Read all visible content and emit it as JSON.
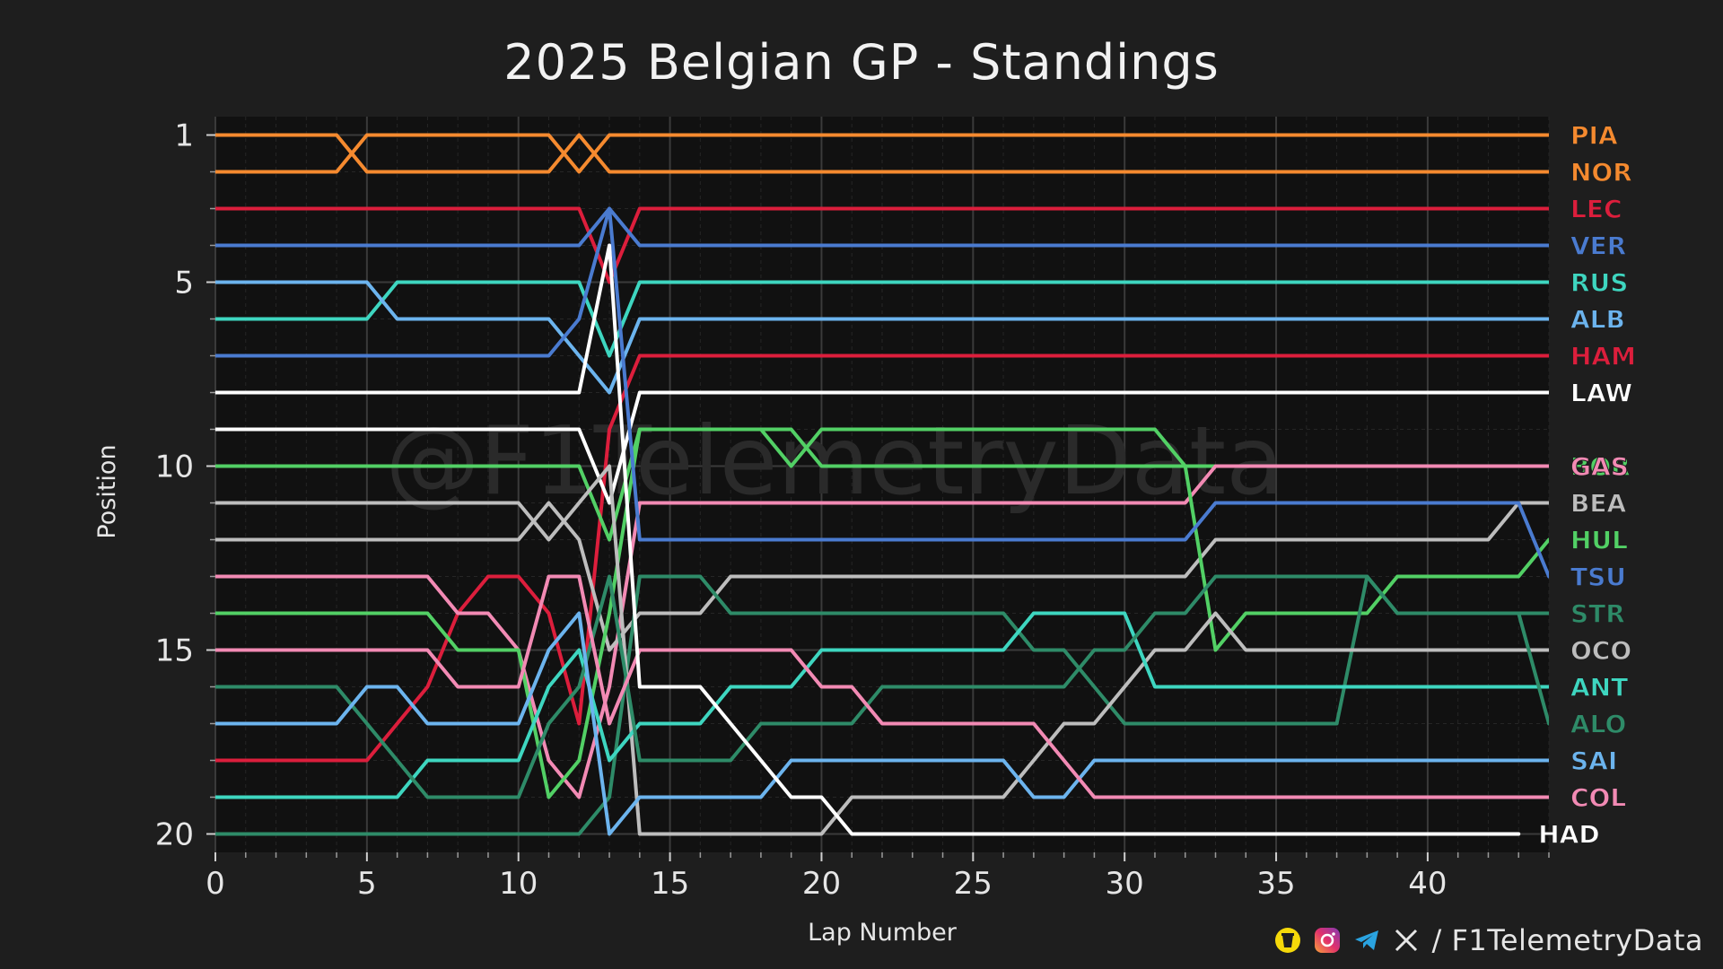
{
  "footer": {
    "handle": "/ F1TelemetryData",
    "icons": [
      "buymeacoffee-icon",
      "instagram-icon",
      "telegram-icon",
      "x-icon"
    ]
  },
  "chart_data": {
    "type": "line",
    "title": "2025 Belgian GP - Standings",
    "xlabel": "Lap Number",
    "ylabel": "Position",
    "xlim": [
      0,
      44
    ],
    "ylim": [
      20.5,
      0.5
    ],
    "xticks": [
      0,
      5,
      10,
      15,
      20,
      25,
      30,
      35,
      40
    ],
    "yticks": [
      1,
      5,
      10,
      15,
      20
    ],
    "grid": true,
    "watermark": "@F1TelemetryData",
    "legend": "driver labels at line ends (right)",
    "series": [
      {
        "name": "PIA",
        "color": "#f58a2f",
        "values": [
          2,
          2,
          2,
          2,
          2,
          1,
          1,
          1,
          1,
          1,
          1,
          1,
          2,
          1,
          1,
          1,
          1,
          1,
          1,
          1,
          1,
          1,
          1,
          1,
          1,
          1,
          1,
          1,
          1,
          1,
          1,
          1,
          1,
          1,
          1,
          1,
          1,
          1,
          1,
          1,
          1,
          1,
          1,
          1,
          1
        ]
      },
      {
        "name": "NOR",
        "color": "#f58a2f",
        "values": [
          1,
          1,
          1,
          1,
          1,
          2,
          2,
          2,
          2,
          2,
          2,
          2,
          1,
          2,
          2,
          2,
          2,
          2,
          2,
          2,
          2,
          2,
          2,
          2,
          2,
          2,
          2,
          2,
          2,
          2,
          2,
          2,
          2,
          2,
          2,
          2,
          2,
          2,
          2,
          2,
          2,
          2,
          2,
          2,
          2
        ]
      },
      {
        "name": "LEC",
        "color": "#dc1e3c",
        "values": [
          3,
          3,
          3,
          3,
          3,
          3,
          3,
          3,
          3,
          3,
          3,
          3,
          3,
          5,
          3,
          3,
          3,
          3,
          3,
          3,
          3,
          3,
          3,
          3,
          3,
          3,
          3,
          3,
          3,
          3,
          3,
          3,
          3,
          3,
          3,
          3,
          3,
          3,
          3,
          3,
          3,
          3,
          3,
          3,
          3
        ]
      },
      {
        "name": "VER",
        "color": "#4a7bd0",
        "values": [
          4,
          4,
          4,
          4,
          4,
          4,
          4,
          4,
          4,
          4,
          4,
          4,
          4,
          3,
          4,
          4,
          4,
          4,
          4,
          4,
          4,
          4,
          4,
          4,
          4,
          4,
          4,
          4,
          4,
          4,
          4,
          4,
          4,
          4,
          4,
          4,
          4,
          4,
          4,
          4,
          4,
          4,
          4,
          4,
          4
        ]
      },
      {
        "name": "RUS",
        "color": "#3ed6c0",
        "values": [
          6,
          6,
          6,
          6,
          6,
          6,
          5,
          5,
          5,
          5,
          5,
          5,
          5,
          7,
          5,
          5,
          5,
          5,
          5,
          5,
          5,
          5,
          5,
          5,
          5,
          5,
          5,
          5,
          5,
          5,
          5,
          5,
          5,
          5,
          5,
          5,
          5,
          5,
          5,
          5,
          5,
          5,
          5,
          5,
          5
        ]
      },
      {
        "name": "ALB",
        "color": "#6cb4ee",
        "values": [
          5,
          5,
          5,
          5,
          5,
          5,
          6,
          6,
          6,
          6,
          6,
          6,
          7,
          8,
          6,
          6,
          6,
          6,
          6,
          6,
          6,
          6,
          6,
          6,
          6,
          6,
          6,
          6,
          6,
          6,
          6,
          6,
          6,
          6,
          6,
          6,
          6,
          6,
          6,
          6,
          6,
          6,
          6,
          6,
          6
        ]
      },
      {
        "name": "HAM",
        "color": "#dc1e3c",
        "values": [
          18,
          18,
          18,
          18,
          18,
          18,
          17,
          16,
          14,
          13,
          13,
          14,
          17,
          9,
          7,
          7,
          7,
          7,
          7,
          7,
          7,
          7,
          7,
          7,
          7,
          7,
          7,
          7,
          7,
          7,
          7,
          7,
          7,
          7,
          7,
          7,
          7,
          7,
          7,
          7,
          7,
          7,
          7,
          7,
          7
        ]
      },
      {
        "name": "LAW",
        "color": "#ffffff",
        "values": [
          9,
          9,
          9,
          9,
          9,
          9,
          9,
          9,
          9,
          9,
          9,
          9,
          9,
          11,
          8,
          8,
          8,
          8,
          8,
          8,
          8,
          8,
          8,
          8,
          8,
          8,
          8,
          8,
          8,
          8,
          8,
          8,
          8,
          8,
          8,
          8,
          8,
          8,
          8,
          8,
          8,
          8,
          8,
          8,
          8
        ]
      },
      {
        "name": "BOR",
        "color": "#52d065",
        "values": [
          10,
          10,
          10,
          10,
          10,
          10,
          10,
          10,
          10,
          10,
          10,
          10,
          10,
          12,
          9,
          9,
          9,
          9,
          9,
          9,
          10,
          10,
          10,
          10,
          10,
          10,
          10,
          10,
          10,
          10,
          10,
          10,
          10,
          10,
          10,
          10,
          10,
          10,
          10,
          10,
          10,
          10,
          10,
          10,
          10
        ]
      },
      {
        "name": "GAS",
        "color": "#f28ab4",
        "values": [
          13,
          13,
          13,
          13,
          13,
          13,
          13,
          13,
          14,
          14,
          15,
          18,
          19,
          16,
          11,
          11,
          11,
          11,
          11,
          11,
          11,
          11,
          11,
          11,
          11,
          11,
          11,
          11,
          11,
          11,
          11,
          11,
          11,
          10,
          10,
          10,
          10,
          10,
          10,
          10,
          10,
          10,
          10,
          10,
          10
        ]
      },
      {
        "name": "BEA",
        "color": "#bdbdbd",
        "values": [
          12,
          12,
          12,
          12,
          12,
          12,
          12,
          12,
          12,
          12,
          12,
          11,
          12,
          15,
          14,
          14,
          14,
          13,
          13,
          13,
          13,
          13,
          13,
          13,
          13,
          13,
          13,
          13,
          13,
          13,
          13,
          13,
          13,
          12,
          12,
          12,
          12,
          12,
          12,
          12,
          12,
          12,
          12,
          11,
          11
        ]
      },
      {
        "name": "HUL",
        "color": "#52d065",
        "values": [
          14,
          14,
          14,
          14,
          14,
          14,
          14,
          14,
          15,
          15,
          15,
          19,
          18,
          14,
          9,
          9,
          9,
          9,
          9,
          10,
          9,
          9,
          9,
          9,
          9,
          9,
          9,
          9,
          9,
          9,
          9,
          9,
          10,
          15,
          14,
          14,
          14,
          14,
          14,
          13,
          13,
          13,
          13,
          13,
          12
        ]
      },
      {
        "name": "TSU",
        "color": "#4a7bd0",
        "values": [
          7,
          7,
          7,
          7,
          7,
          7,
          7,
          7,
          7,
          7,
          7,
          7,
          6,
          3,
          12,
          12,
          12,
          12,
          12,
          12,
          12,
          12,
          12,
          12,
          12,
          12,
          12,
          12,
          12,
          12,
          12,
          12,
          12,
          11,
          11,
          11,
          11,
          11,
          11,
          11,
          11,
          11,
          11,
          11,
          13
        ]
      },
      {
        "name": "STR",
        "color": "#2e8b68",
        "values": [
          20,
          20,
          20,
          20,
          20,
          20,
          20,
          20,
          20,
          20,
          20,
          20,
          20,
          19,
          13,
          13,
          13,
          14,
          14,
          14,
          14,
          14,
          14,
          14,
          14,
          14,
          14,
          15,
          15,
          16,
          17,
          17,
          17,
          17,
          17,
          17,
          17,
          17,
          13,
          14,
          14,
          14,
          14,
          14,
          14
        ]
      },
      {
        "name": "OCO",
        "color": "#bdbdbd",
        "values": [
          11,
          11,
          11,
          11,
          11,
          11,
          11,
          11,
          11,
          11,
          11,
          12,
          11,
          10,
          20,
          20,
          20,
          20,
          20,
          20,
          20,
          19,
          19,
          19,
          19,
          19,
          19,
          18,
          17,
          17,
          16,
          15,
          15,
          14,
          15,
          15,
          15,
          15,
          15,
          15,
          15,
          15,
          15,
          15,
          15
        ]
      },
      {
        "name": "ANT",
        "color": "#3ed6c0",
        "values": [
          19,
          19,
          19,
          19,
          19,
          19,
          19,
          18,
          18,
          18,
          18,
          16,
          15,
          18,
          17,
          17,
          17,
          16,
          16,
          16,
          15,
          15,
          15,
          15,
          15,
          15,
          15,
          14,
          14,
          14,
          14,
          16,
          16,
          16,
          16,
          16,
          16,
          16,
          16,
          16,
          16,
          16,
          16,
          16,
          16
        ]
      },
      {
        "name": "ALO",
        "color": "#2e8b68",
        "values": [
          16,
          16,
          16,
          16,
          16,
          17,
          18,
          19,
          19,
          19,
          19,
          17,
          16,
          13,
          18,
          18,
          18,
          18,
          17,
          17,
          17,
          17,
          16,
          16,
          16,
          16,
          16,
          16,
          16,
          15,
          15,
          14,
          14,
          13,
          13,
          13,
          13,
          13,
          13,
          14,
          14,
          14,
          14,
          14,
          17
        ]
      },
      {
        "name": "SAI",
        "color": "#6cb4ee",
        "values": [
          17,
          17,
          17,
          17,
          17,
          16,
          16,
          17,
          17,
          17,
          17,
          15,
          14,
          20,
          19,
          19,
          19,
          19,
          19,
          18,
          18,
          18,
          18,
          18,
          18,
          18,
          18,
          19,
          19,
          18,
          18,
          18,
          18,
          18,
          18,
          18,
          18,
          18,
          18,
          18,
          18,
          18,
          18,
          18,
          18
        ]
      },
      {
        "name": "COL",
        "color": "#f28ab4",
        "values": [
          15,
          15,
          15,
          15,
          15,
          15,
          15,
          15,
          16,
          16,
          16,
          13,
          13,
          17,
          15,
          15,
          15,
          15,
          15,
          15,
          16,
          16,
          17,
          17,
          17,
          17,
          17,
          17,
          18,
          19,
          19,
          19,
          19,
          19,
          19,
          19,
          19,
          19,
          19,
          19,
          19,
          19,
          19,
          19,
          19
        ]
      },
      {
        "name": "HAD",
        "color": "#ffffff",
        "values": [
          8,
          8,
          8,
          8,
          8,
          8,
          8,
          8,
          8,
          8,
          8,
          8,
          8,
          4,
          16,
          16,
          16,
          17,
          18,
          19,
          19,
          20,
          20,
          20,
          20,
          20,
          20,
          20,
          20,
          20,
          20,
          20,
          20,
          20,
          20,
          20,
          20,
          20,
          20,
          20,
          20,
          20,
          20,
          20
        ]
      }
    ]
  }
}
